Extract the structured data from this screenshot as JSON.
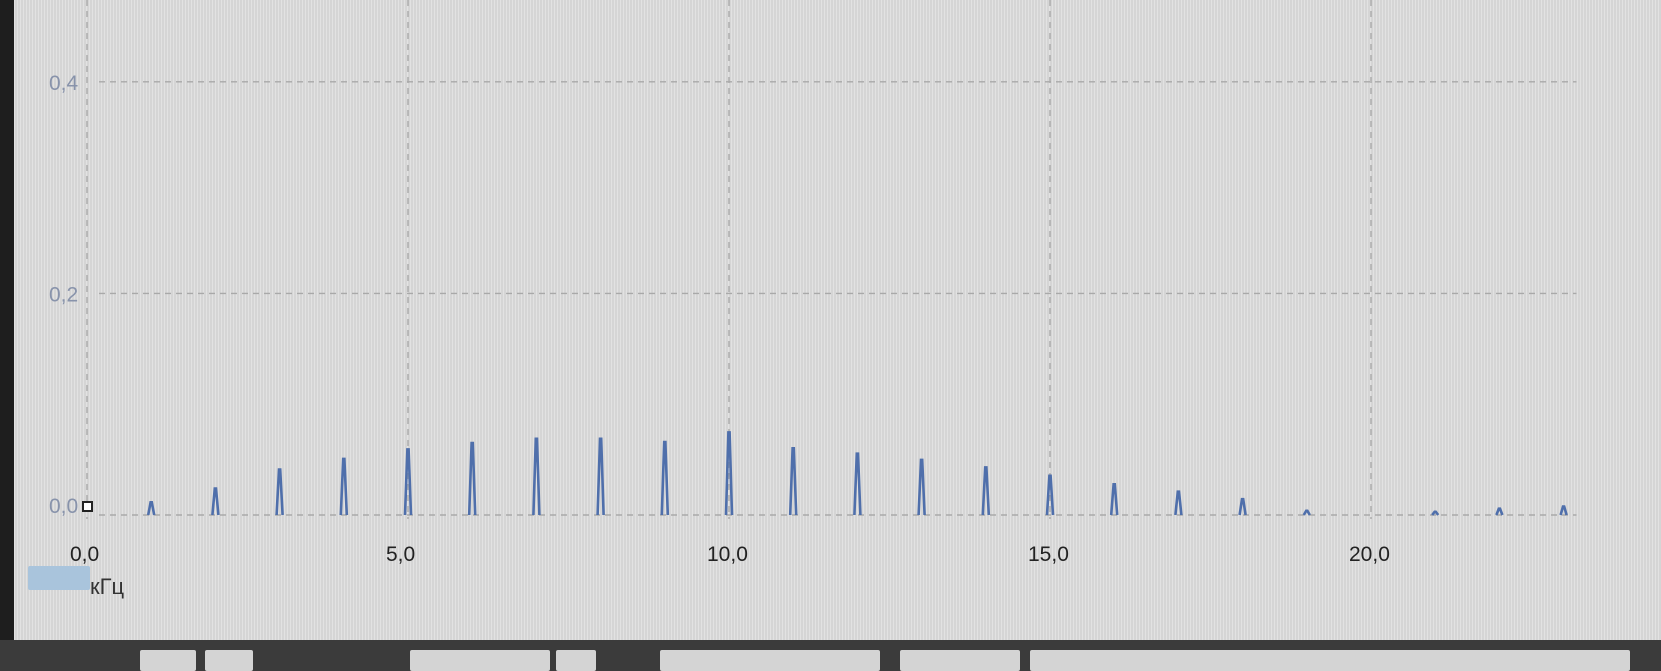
{
  "chart_data": {
    "type": "bar",
    "x_unit_label": "кГц",
    "y_ticks": [
      "0,0",
      "0,2",
      "0,4"
    ],
    "x_ticks": [
      "0,0",
      "5,0",
      "10,0",
      "15,0",
      "20,0"
    ],
    "xlim": [
      0,
      23.2
    ],
    "ylim": [
      0,
      0.48
    ],
    "grid": true,
    "series": [
      {
        "x": [
          1,
          2,
          3,
          4,
          5,
          6,
          7,
          8,
          9,
          10,
          11,
          12,
          13,
          14,
          15,
          16,
          17,
          18,
          19,
          21,
          22,
          23
        ],
        "values": [
          0.012,
          0.025,
          0.043,
          0.053,
          0.062,
          0.068,
          0.072,
          0.072,
          0.069,
          0.078,
          0.063,
          0.058,
          0.052,
          0.045,
          0.037,
          0.029,
          0.022,
          0.015,
          0.004,
          0.003,
          0.006,
          0.008
        ]
      }
    ]
  }
}
